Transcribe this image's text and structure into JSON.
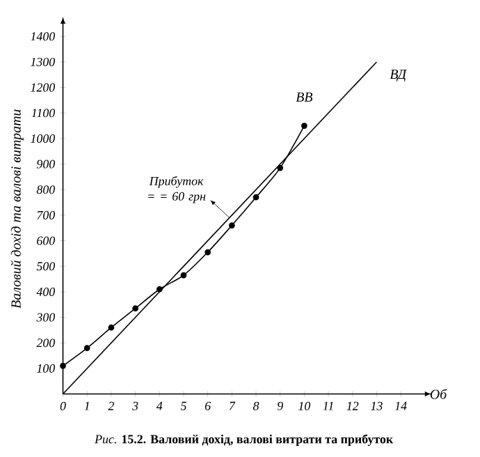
{
  "chart_data": {
    "type": "line",
    "xlabel": "Об",
    "ylabel": "Валовий дохід та валові витрати",
    "xlim": [
      0,
      15
    ],
    "ylim": [
      0,
      1450
    ],
    "xticks": [
      0,
      1,
      2,
      3,
      4,
      5,
      6,
      7,
      8,
      9,
      10,
      11,
      12,
      13,
      14
    ],
    "yticks": [
      100,
      200,
      300,
      400,
      500,
      600,
      700,
      800,
      900,
      1000,
      1100,
      1200,
      1300,
      1400
    ],
    "series": [
      {
        "name": "ВВ",
        "color": "#000000",
        "marker": "circle",
        "x": [
          0,
          1,
          2,
          3,
          4,
          5,
          6,
          7,
          8,
          9,
          10
        ],
        "values": [
          110,
          180,
          260,
          335,
          410,
          465,
          555,
          660,
          770,
          885,
          1050
        ]
      },
      {
        "name": "ВД",
        "color": "#000000",
        "marker": "none",
        "x": [
          0,
          13
        ],
        "values": [
          0,
          1300
        ]
      }
    ],
    "annotations": [
      "Прибуток = = 60 грн",
      "*Рис.* **15.2. Валовий дохід, валові витрати та прибуток**"
    ],
    "grid": false
  }
}
